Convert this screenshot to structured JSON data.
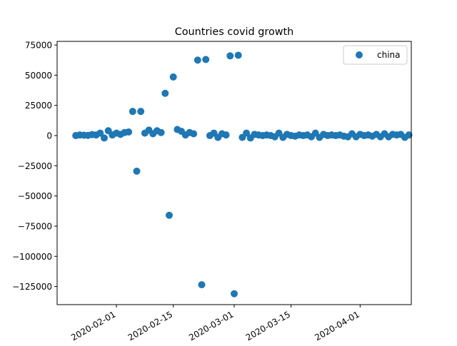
{
  "chart_data": {
    "type": "scatter",
    "title": "Countries covid growth",
    "xlabel": "",
    "ylabel": "",
    "grid": false,
    "legend_position": "top-right",
    "x_range": [
      "2020-01-18",
      "2020-04-13"
    ],
    "ylim": [
      -140000,
      78000
    ],
    "x_ticks": [
      "2020-02-01",
      "2020-02-15",
      "2020-03-01",
      "2020-03-15",
      "2020-04-01"
    ],
    "y_ticks": [
      75000,
      50000,
      25000,
      0,
      -25000,
      -50000,
      -75000,
      -100000,
      -125000
    ],
    "y_tick_labels": [
      "75000",
      "50000",
      "25000",
      "0",
      "−25000",
      "−50000",
      "−75000",
      "−100000",
      "−125000"
    ],
    "series": [
      {
        "name": "china",
        "color": "#1f77b4",
        "points": [
          [
            "2020-01-22",
            0
          ],
          [
            "2020-01-23",
            500
          ],
          [
            "2020-01-24",
            300
          ],
          [
            "2020-01-25",
            200
          ],
          [
            "2020-01-26",
            800
          ],
          [
            "2020-01-27",
            500
          ],
          [
            "2020-01-28",
            2000
          ],
          [
            "2020-01-29",
            -2000
          ],
          [
            "2020-01-30",
            4000
          ],
          [
            "2020-01-31",
            500
          ],
          [
            "2020-02-01",
            2000
          ],
          [
            "2020-02-02",
            1000
          ],
          [
            "2020-02-03",
            2500
          ],
          [
            "2020-02-04",
            3000
          ],
          [
            "2020-02-05",
            20000
          ],
          [
            "2020-02-06",
            -29500
          ],
          [
            "2020-02-07",
            20000
          ],
          [
            "2020-02-08",
            2000
          ],
          [
            "2020-02-09",
            4500
          ],
          [
            "2020-02-10",
            1500
          ],
          [
            "2020-02-11",
            4000
          ],
          [
            "2020-02-12",
            2500
          ],
          [
            "2020-02-13",
            35000
          ],
          [
            "2020-02-14",
            -66000
          ],
          [
            "2020-02-15",
            48500
          ],
          [
            "2020-02-16",
            5000
          ],
          [
            "2020-02-17",
            3500
          ],
          [
            "2020-02-18",
            500
          ],
          [
            "2020-02-19",
            2500
          ],
          [
            "2020-02-20",
            1500
          ],
          [
            "2020-02-21",
            62500
          ],
          [
            "2020-02-22",
            -123500
          ],
          [
            "2020-02-23",
            63000
          ],
          [
            "2020-02-24",
            0
          ],
          [
            "2020-02-25",
            2000
          ],
          [
            "2020-02-26",
            -1500
          ],
          [
            "2020-02-27",
            1500
          ],
          [
            "2020-02-28",
            500
          ],
          [
            "2020-02-29",
            66000
          ],
          [
            "2020-03-01",
            -131000
          ],
          [
            "2020-03-02",
            66500
          ],
          [
            "2020-03-03",
            -1500
          ],
          [
            "2020-03-04",
            2000
          ],
          [
            "2020-03-05",
            -2000
          ],
          [
            "2020-03-06",
            1000
          ],
          [
            "2020-03-07",
            500
          ],
          [
            "2020-03-08",
            0
          ],
          [
            "2020-03-09",
            500
          ],
          [
            "2020-03-10",
            0
          ],
          [
            "2020-03-11",
            -1000
          ],
          [
            "2020-03-12",
            2000
          ],
          [
            "2020-03-13",
            -1500
          ],
          [
            "2020-03-14",
            1000
          ],
          [
            "2020-03-15",
            0
          ],
          [
            "2020-03-16",
            -500
          ],
          [
            "2020-03-17",
            500
          ],
          [
            "2020-03-18",
            0
          ],
          [
            "2020-03-19",
            500
          ],
          [
            "2020-03-20",
            -1000
          ],
          [
            "2020-03-21",
            2000
          ],
          [
            "2020-03-22",
            -1500
          ],
          [
            "2020-03-23",
            1000
          ],
          [
            "2020-03-24",
            0
          ],
          [
            "2020-03-25",
            500
          ],
          [
            "2020-03-26",
            0
          ],
          [
            "2020-03-27",
            500
          ],
          [
            "2020-03-28",
            -500
          ],
          [
            "2020-03-29",
            -1000
          ],
          [
            "2020-03-30",
            1500
          ],
          [
            "2020-03-31",
            -1000
          ],
          [
            "2020-04-01",
            1000
          ],
          [
            "2020-04-02",
            0
          ],
          [
            "2020-04-03",
            500
          ],
          [
            "2020-04-04",
            -500
          ],
          [
            "2020-04-05",
            1000
          ],
          [
            "2020-04-06",
            -1000
          ],
          [
            "2020-04-07",
            1500
          ],
          [
            "2020-04-08",
            -1000
          ],
          [
            "2020-04-09",
            1000
          ],
          [
            "2020-04-10",
            500
          ],
          [
            "2020-04-11",
            1000
          ],
          [
            "2020-04-12",
            -1500
          ],
          [
            "2020-04-13",
            500
          ]
        ]
      }
    ]
  }
}
